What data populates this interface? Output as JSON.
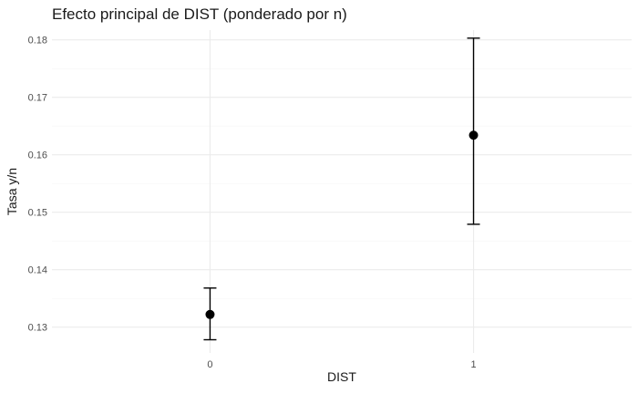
{
  "chart_data": {
    "type": "scatter",
    "title": "Efecto principal de DIST (ponderado por n)",
    "xlabel": "DIST",
    "ylabel": "Tasa y/n",
    "categories": [
      "0",
      "1"
    ],
    "points": [
      {
        "x": "0",
        "y": 0.1322,
        "lower": 0.1278,
        "upper": 0.1368
      },
      {
        "x": "1",
        "y": 0.1634,
        "lower": 0.1479,
        "upper": 0.1803
      }
    ],
    "yticks": [
      0.13,
      0.14,
      0.15,
      0.16,
      0.17,
      0.18
    ],
    "ytick_labels": [
      "0.13",
      "0.14",
      "0.15",
      "0.16",
      "0.17",
      "0.18"
    ],
    "ylim": [
      0.1255,
      0.1817
    ],
    "grid": true,
    "legend": "none"
  }
}
